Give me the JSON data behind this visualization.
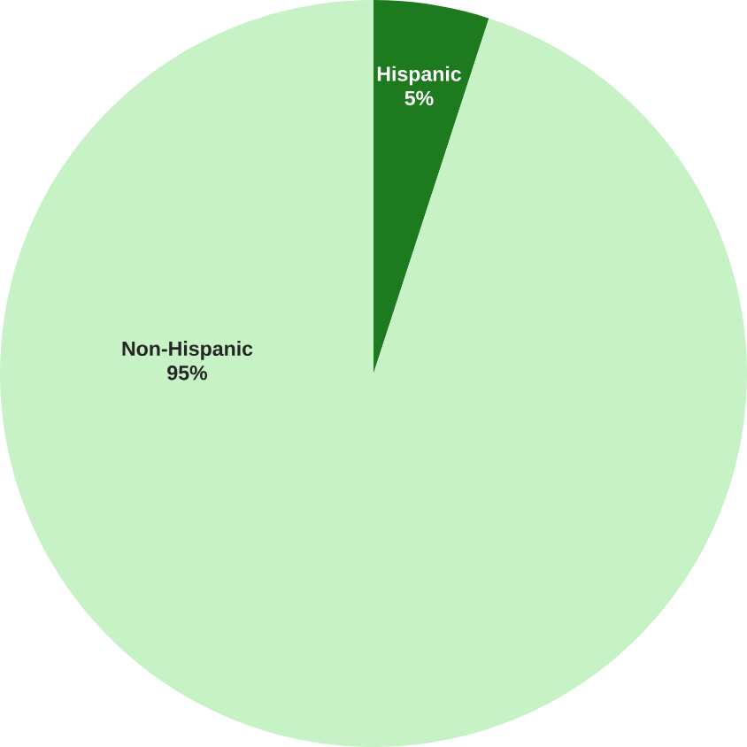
{
  "chart_data": {
    "type": "pie",
    "categories": [
      "Hispanic",
      "Non-Hispanic"
    ],
    "values": [
      5,
      95
    ],
    "colors": [
      "#1e7a1e",
      "#c6f2c6"
    ],
    "value_labels": [
      "5%",
      "95%"
    ]
  }
}
